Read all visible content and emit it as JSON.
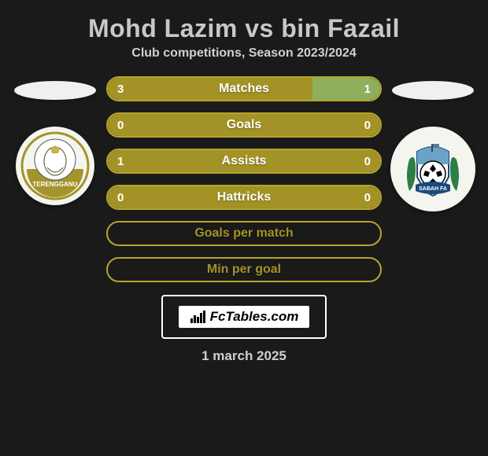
{
  "title": "Mohd Lazim vs bin Fazail",
  "subtitle": "Club competitions, Season 2023/2024",
  "date": "1 march 2025",
  "brand": "FcTables.com",
  "colors": {
    "background": "#1a1a1a",
    "title_text": "#c8c8c8",
    "bar_olive": "#a39326",
    "bar_border_olive": "#b5a52e",
    "bar_light": "#8fae5e",
    "flag_bg": "#f0f0f0",
    "crest_left_bg": "#f5f5f0",
    "crest_right_bg": "#f5f5f0"
  },
  "crests": {
    "left": {
      "name": "Terengganu",
      "band_text": "TERENGGANU",
      "ring_color": "#a3942b",
      "inner_bg": "#ffffff"
    },
    "right": {
      "name": "Sabah FA",
      "band_text": "SABAH FA",
      "ring_color": "#6aa3c7",
      "inner_bg": "#ffffff",
      "ball_color": "#000000",
      "wreath_color": "#2e7d45"
    }
  },
  "bars": [
    {
      "label": "Matches",
      "left_val": "3",
      "right_val": "1",
      "left_pct": 75,
      "right_pct": 25,
      "left_color": "#a39326",
      "right_color": "#8fae5e",
      "border_color": "#b5a52e",
      "show_vals": true
    },
    {
      "label": "Goals",
      "left_val": "0",
      "right_val": "0",
      "left_pct": 50,
      "right_pct": 50,
      "left_color": "#a39326",
      "right_color": "#a39326",
      "border_color": "#b5a52e",
      "show_vals": true
    },
    {
      "label": "Assists",
      "left_val": "1",
      "right_val": "0",
      "left_pct": 100,
      "right_pct": 0,
      "left_color": "#a39326",
      "right_color": "#a39326",
      "border_color": "#b5a52e",
      "show_vals": true
    },
    {
      "label": "Hattricks",
      "left_val": "0",
      "right_val": "0",
      "left_pct": 50,
      "right_pct": 50,
      "left_color": "#a39326",
      "right_color": "#a39326",
      "border_color": "#b5a52e",
      "show_vals": true
    },
    {
      "label": "Goals per match",
      "left_val": "",
      "right_val": "",
      "left_pct": 0,
      "right_pct": 0,
      "left_color": "transparent",
      "right_color": "transparent",
      "border_color": "#b5a52e",
      "show_vals": false,
      "label_color": "#a39326"
    },
    {
      "label": "Min per goal",
      "left_val": "",
      "right_val": "",
      "left_pct": 0,
      "right_pct": 0,
      "left_color": "transparent",
      "right_color": "transparent",
      "border_color": "#b5a52e",
      "show_vals": false,
      "label_color": "#a39326"
    }
  ],
  "typography": {
    "title_fontsize": 32,
    "subtitle_fontsize": 16,
    "bar_label_fontsize": 16,
    "bar_value_fontsize": 15,
    "date_fontsize": 17
  }
}
